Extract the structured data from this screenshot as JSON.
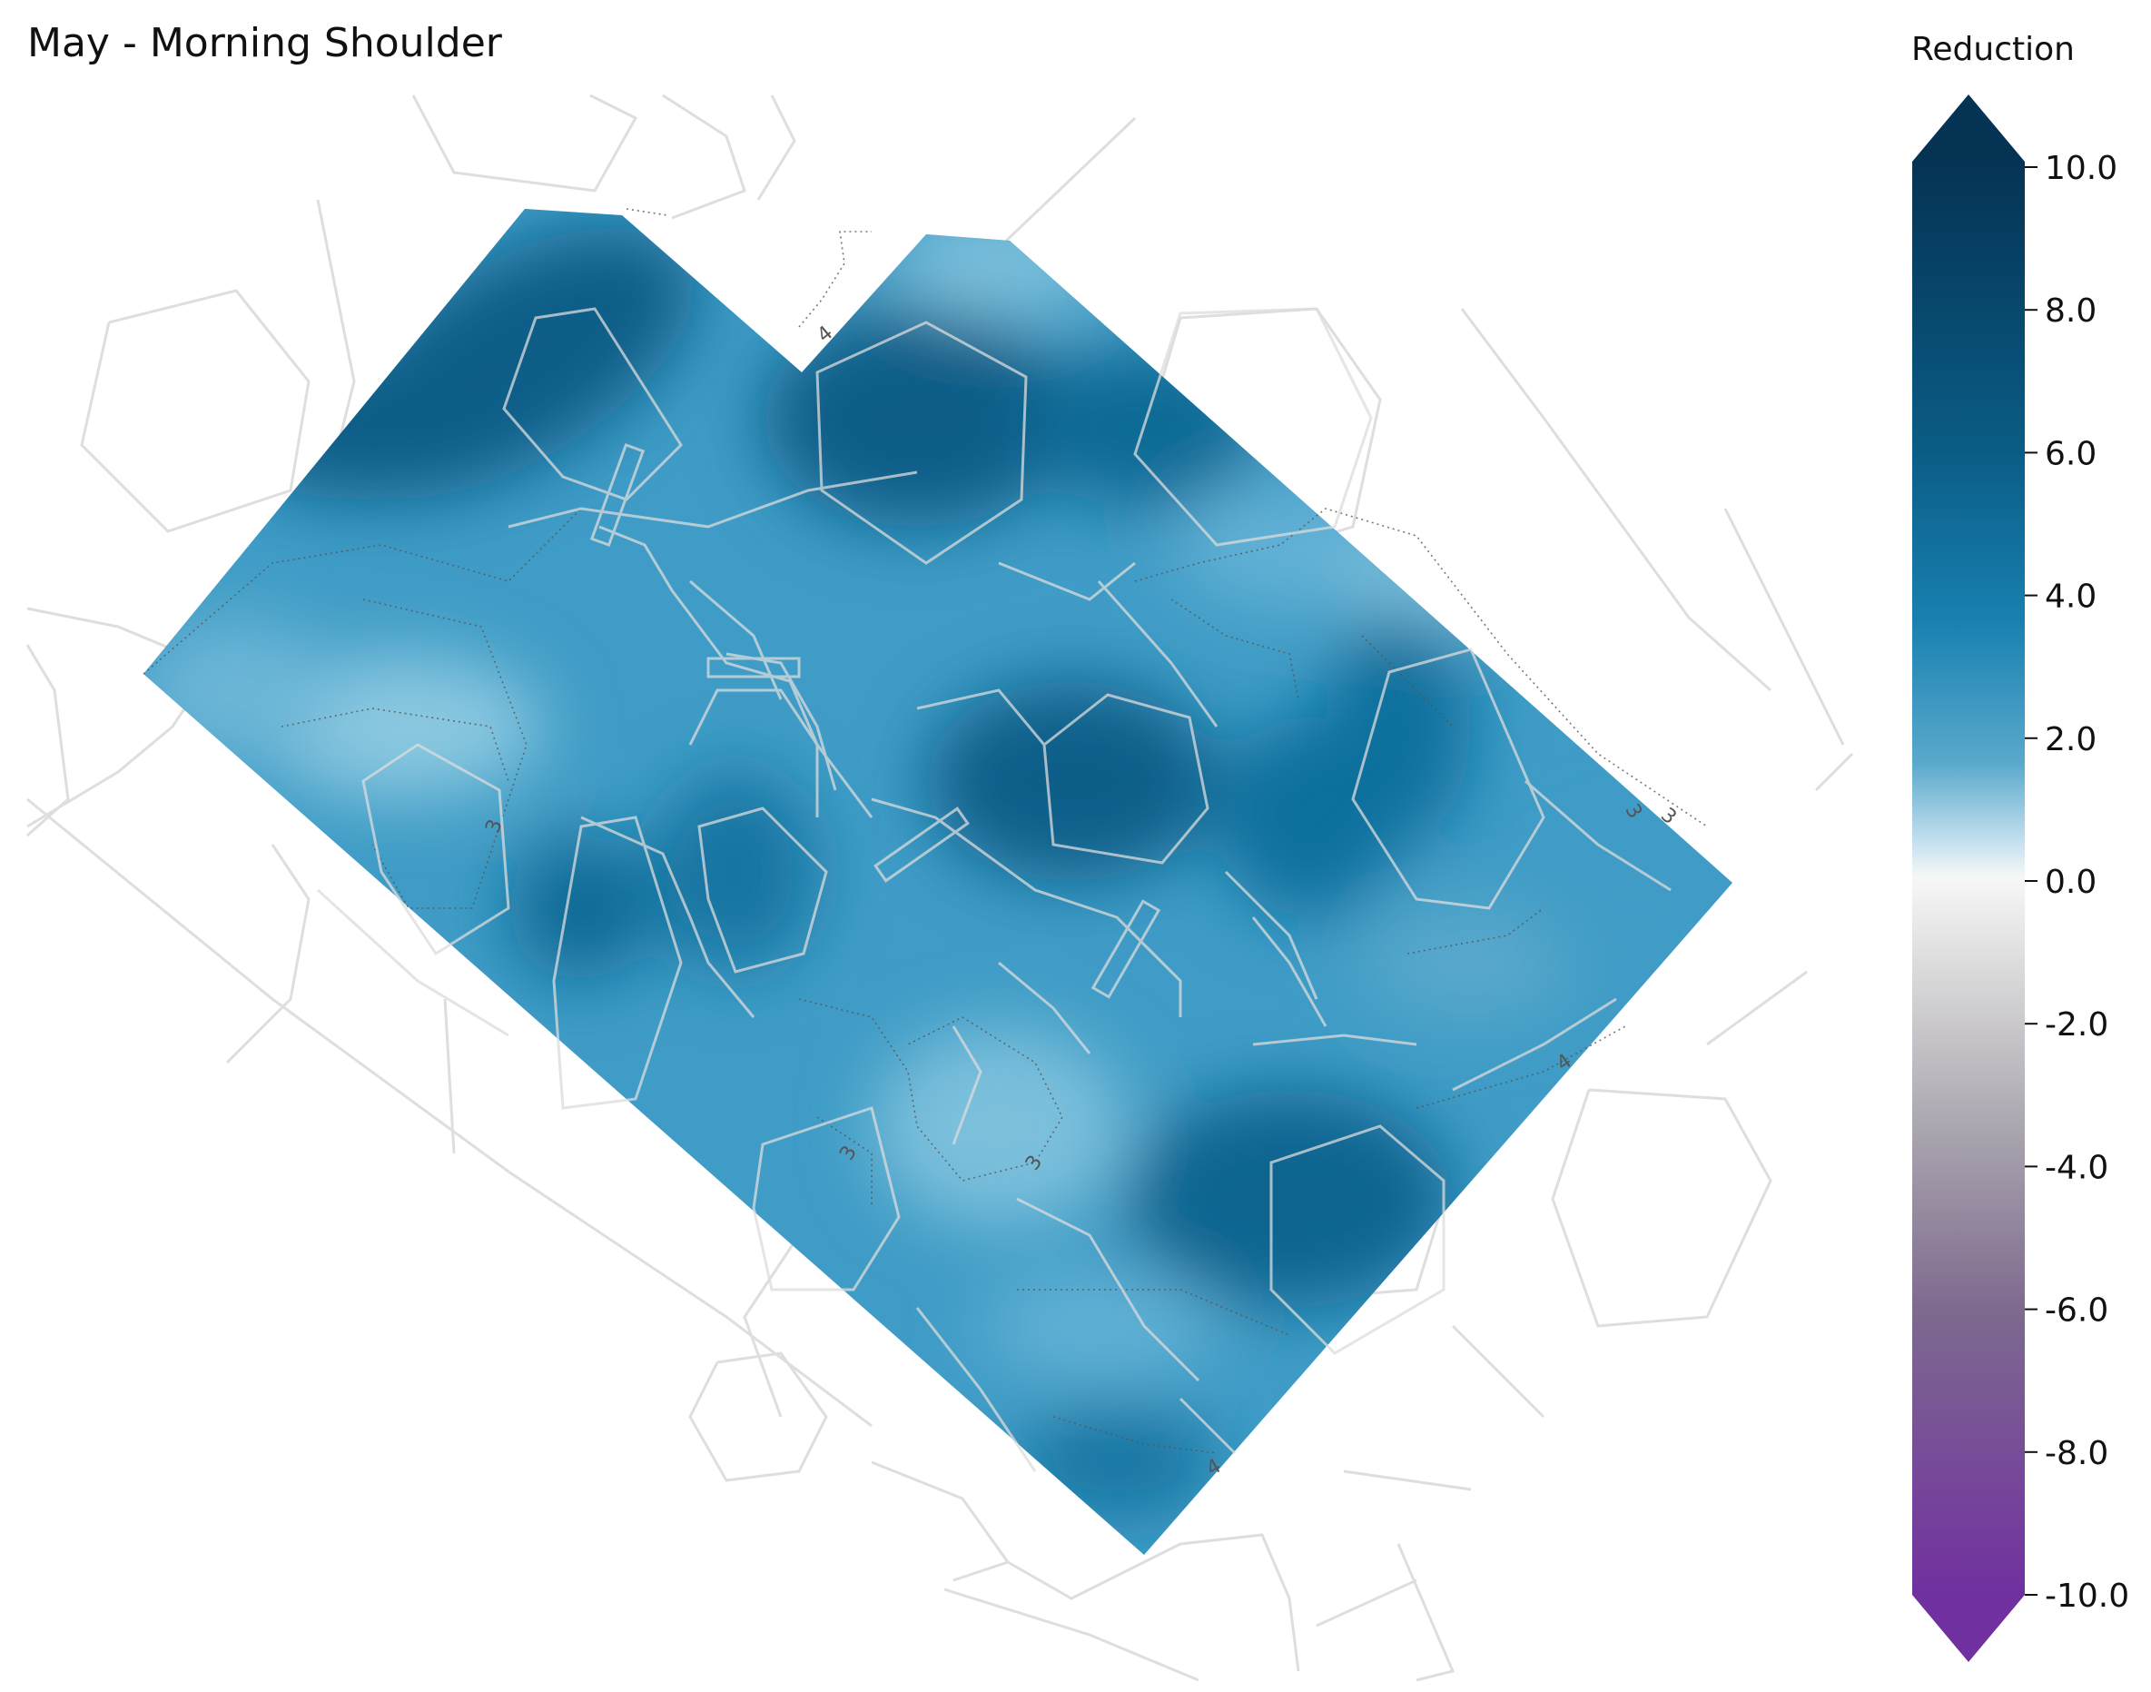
{
  "chart_data": {
    "type": "heatmap",
    "title": "May - Morning Shoulder",
    "colorbar": {
      "label": "Reduction",
      "range": [
        -10.0,
        10.0
      ],
      "extend": "both",
      "ticks": [
        "10.0",
        "8.0",
        "6.0",
        "4.0",
        "2.0",
        "0.0",
        "-2.0",
        "-4.0",
        "-6.0",
        "-8.0",
        "-10.0"
      ],
      "colormap": [
        "#7030a0",
        "#f7f7f7",
        "#053354"
      ]
    },
    "contour_labels": [
      "4",
      "3",
      "3",
      "3",
      "3",
      "3",
      "4",
      "4"
    ],
    "field_value_range": [
      2.0,
      8.0
    ]
  }
}
